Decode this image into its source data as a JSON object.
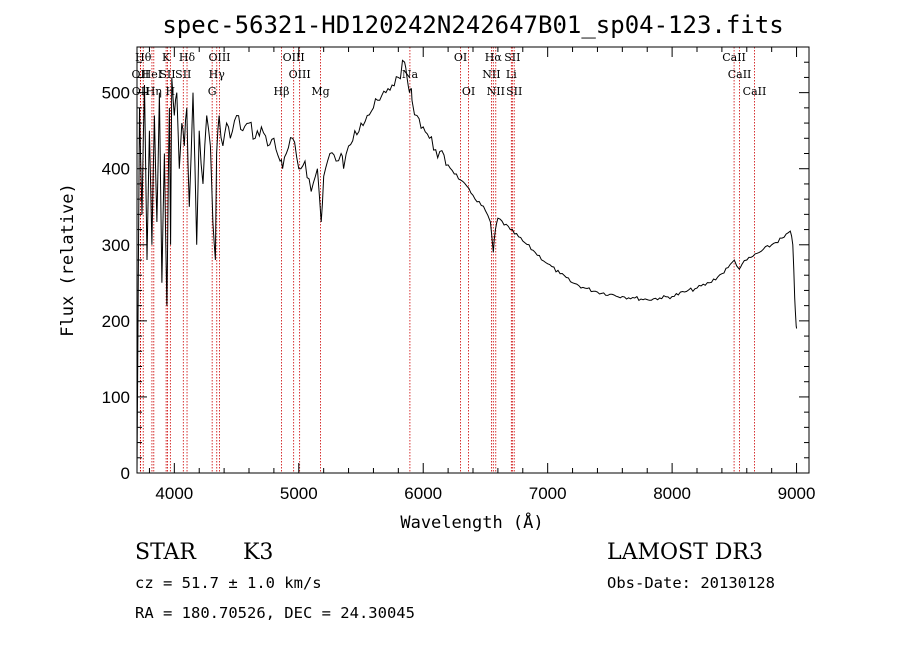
{
  "chart_data": {
    "type": "line",
    "title": "spec-56321-HD120242N242647B01_sp04-123.fits",
    "xlabel": "Wavelength (Å)",
    "ylabel": "Flux (relative)",
    "xlim": [
      3700,
      9100
    ],
    "ylim": [
      0,
      560
    ],
    "xticks": [
      4000,
      5000,
      6000,
      7000,
      8000,
      9000
    ],
    "yticks": [
      0,
      100,
      200,
      300,
      400,
      500
    ],
    "grid": false,
    "series": [
      {
        "x": [
          3700,
          3720,
          3740,
          3760,
          3780,
          3800,
          3820,
          3840,
          3860,
          3880,
          3900,
          3920,
          3940,
          3950,
          3960,
          3970,
          3980,
          4000,
          4020,
          4040,
          4060,
          4080,
          4100,
          4120,
          4150,
          4180,
          4200,
          4230,
          4260,
          4290,
          4310,
          4330,
          4340,
          4360,
          4390,
          4420,
          4450,
          4500,
          4550,
          4600,
          4650,
          4700,
          4750,
          4800,
          4850,
          4870,
          4900,
          4950,
          5000,
          5050,
          5100,
          5150,
          5180,
          5200,
          5250,
          5300,
          5340,
          5360,
          5400,
          5450,
          5500,
          5550,
          5600,
          5650,
          5700,
          5750,
          5800,
          5850,
          5870,
          5890,
          5900,
          5910,
          5950,
          6000,
          6050,
          6100,
          6200,
          6300,
          6400,
          6500,
          6540,
          6563,
          6580,
          6600,
          6700,
          6800,
          6900,
          7000,
          7100,
          7200,
          7300,
          7400,
          7500,
          7600,
          7700,
          7800,
          7900,
          8000,
          8100,
          8200,
          8300,
          8400,
          8450,
          8500,
          8540,
          8560,
          8600,
          8650,
          8700,
          8800,
          8900,
          8950,
          8970,
          8985,
          8995,
          9000
        ],
        "y": [
          0,
          480,
          340,
          510,
          280,
          450,
          300,
          470,
          330,
          500,
          250,
          420,
          220,
          360,
          480,
          300,
          520,
          470,
          500,
          400,
          460,
          430,
          480,
          350,
          500,
          300,
          450,
          380,
          470,
          430,
          330,
          280,
          420,
          470,
          430,
          460,
          440,
          470,
          450,
          460,
          440,
          455,
          430,
          440,
          410,
          400,
          420,
          440,
          400,
          410,
          370,
          400,
          330,
          390,
          420,
          410,
          420,
          400,
          430,
          450,
          460,
          470,
          480,
          490,
          500,
          510,
          520,
          540,
          520,
          500,
          505,
          490,
          470,
          455,
          440,
          425,
          405,
          385,
          365,
          345,
          330,
          290,
          320,
          335,
          320,
          305,
          290,
          275,
          262,
          250,
          243,
          238,
          235,
          232,
          230,
          228,
          230,
          232,
          238,
          243,
          250,
          262,
          270,
          280,
          268,
          274,
          280,
          285,
          290,
          300,
          310,
          318,
          300,
          230,
          200,
          190
        ]
      }
    ]
  },
  "spectral_lines": [
    {
      "label": "Hθ"
    },
    {
      "label": "OII"
    },
    {
      "label": "OII"
    },
    {
      "label": "HeI"
    },
    {
      "label": "Hη"
    },
    {
      "label": "K"
    },
    {
      "label": "SII"
    },
    {
      "label": "H"
    },
    {
      "label": "Hδ"
    },
    {
      "label": "SII"
    },
    {
      "label": "OIII"
    },
    {
      "label": "Hγ"
    },
    {
      "label": "G"
    },
    {
      "label": "Hβ"
    },
    {
      "label": "OIII"
    },
    {
      "label": "OIII"
    },
    {
      "label": "Mg"
    },
    {
      "label": "Na"
    },
    {
      "label": "OI"
    },
    {
      "label": "OI"
    },
    {
      "label": "Hα"
    },
    {
      "label": "NII"
    },
    {
      "label": "NII"
    },
    {
      "label": "SII"
    },
    {
      "label": "Li"
    },
    {
      "label": "SII"
    },
    {
      "label": "CaII"
    },
    {
      "label": "CaII"
    },
    {
      "label": "CaII"
    }
  ],
  "info": {
    "object_class": "STAR",
    "subclass": "K3",
    "survey": "LAMOST DR3",
    "redshift": "cz = 51.7 ± 1.0 km/s",
    "obs_date": "Obs-Date: 20130128",
    "coords": "RA = 180.70526, DEC =  24.30045"
  },
  "colors": {
    "line_marker": "#cc0000",
    "spectrum": "#000000"
  }
}
